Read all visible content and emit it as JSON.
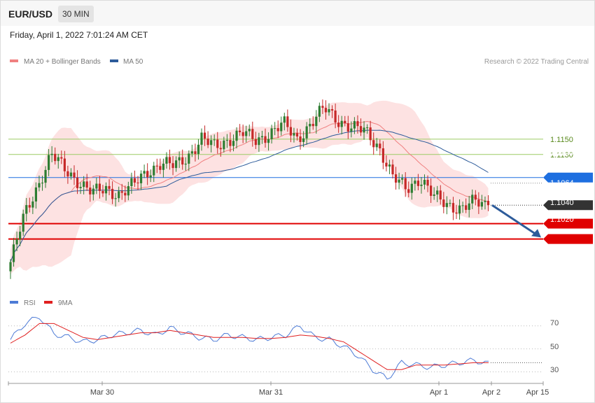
{
  "header": {
    "symbol": "EUR/USD",
    "timeframe": "30 MIN",
    "datetime": "Friday, April 1, 2022 7:01:24 AM CET"
  },
  "legend_price": [
    {
      "label": "MA 20 + Bollinger Bands",
      "color": "#f08080"
    },
    {
      "label": "MA 50",
      "color": "#2d5b9a"
    }
  ],
  "legend_rsi": [
    {
      "label": "RSI",
      "color": "#4d7bd6"
    },
    {
      "label": "9MA",
      "color": "#e02020"
    }
  ],
  "copyright": "Research © 2022 Trading Central",
  "colors": {
    "up": "#2e7d32",
    "down": "#c62828",
    "bb_fill": "#fde2e2",
    "ma20": "#f08080",
    "ma50": "#2d5b9a",
    "rsi": "#4d7bd6",
    "rsi_ma": "#e02020",
    "level_green": "#9ccc65",
    "level_blue": "#1e6fe0",
    "level_red": "#e00000",
    "current": "#333333",
    "arrow": "#2d5b9a"
  },
  "chart_data": [
    {
      "type": "candlestick",
      "ylim": [
        1.0955,
        1.124
      ],
      "x_tick_labels": [
        "Mar 30",
        "Mar 31",
        "Apr 1",
        "Apr 2",
        "Apr 15"
      ],
      "current_price": "1.1064",
      "levels": [
        {
          "value": 1.115,
          "label": "1.1150",
          "style": "green-line"
        },
        {
          "value": 1.113,
          "label": "1.1130",
          "style": "green-line"
        },
        {
          "value": 1.11,
          "label": "1.1100",
          "style": "blue-line-tag"
        },
        {
          "value": 1.104,
          "label": "1.1040",
          "style": "red-line-tag"
        },
        {
          "value": 1.102,
          "label": "1.1020",
          "style": "red-line-tag"
        }
      ],
      "forecast_arrow": {
        "from": 1.1064,
        "to": 1.1023
      },
      "candle_anchors": [
        1.099,
        1.105,
        1.109,
        1.113,
        1.111,
        1.1095,
        1.108,
        1.1085,
        1.1078,
        1.109,
        1.1108,
        1.1118,
        1.1115,
        1.1128,
        1.115,
        1.114,
        1.115,
        1.1158,
        1.1148,
        1.1158,
        1.117,
        1.115,
        1.117,
        1.119,
        1.1175,
        1.1165,
        1.116,
        1.114,
        1.11,
        1.1085,
        1.11,
        1.1075,
        1.1065,
        1.106,
        1.1068,
        1.1064
      ]
    },
    {
      "type": "line",
      "ylim": [
        20,
        85
      ],
      "y_tick_labels": [
        "70",
        "50",
        "30"
      ],
      "y_ticks": [
        70,
        50,
        30
      ],
      "series": [
        {
          "name": "RSI",
          "values": [
            58,
            72,
            78,
            63,
            60,
            56,
            58,
            62,
            64,
            66,
            62,
            68,
            64,
            60,
            58,
            62,
            60,
            58,
            60,
            62,
            70,
            60,
            58,
            52,
            44,
            32,
            24,
            38,
            36,
            34,
            36,
            38,
            40,
            37
          ]
        },
        {
          "name": "9MA",
          "values": [
            55,
            62,
            72,
            72,
            66,
            60,
            58,
            60,
            62,
            64,
            64,
            66,
            64,
            62,
            60,
            60,
            60,
            59,
            59,
            60,
            62,
            61,
            59,
            56,
            48,
            40,
            32,
            32,
            36,
            36,
            36,
            37,
            38,
            38
          ]
        }
      ]
    }
  ]
}
